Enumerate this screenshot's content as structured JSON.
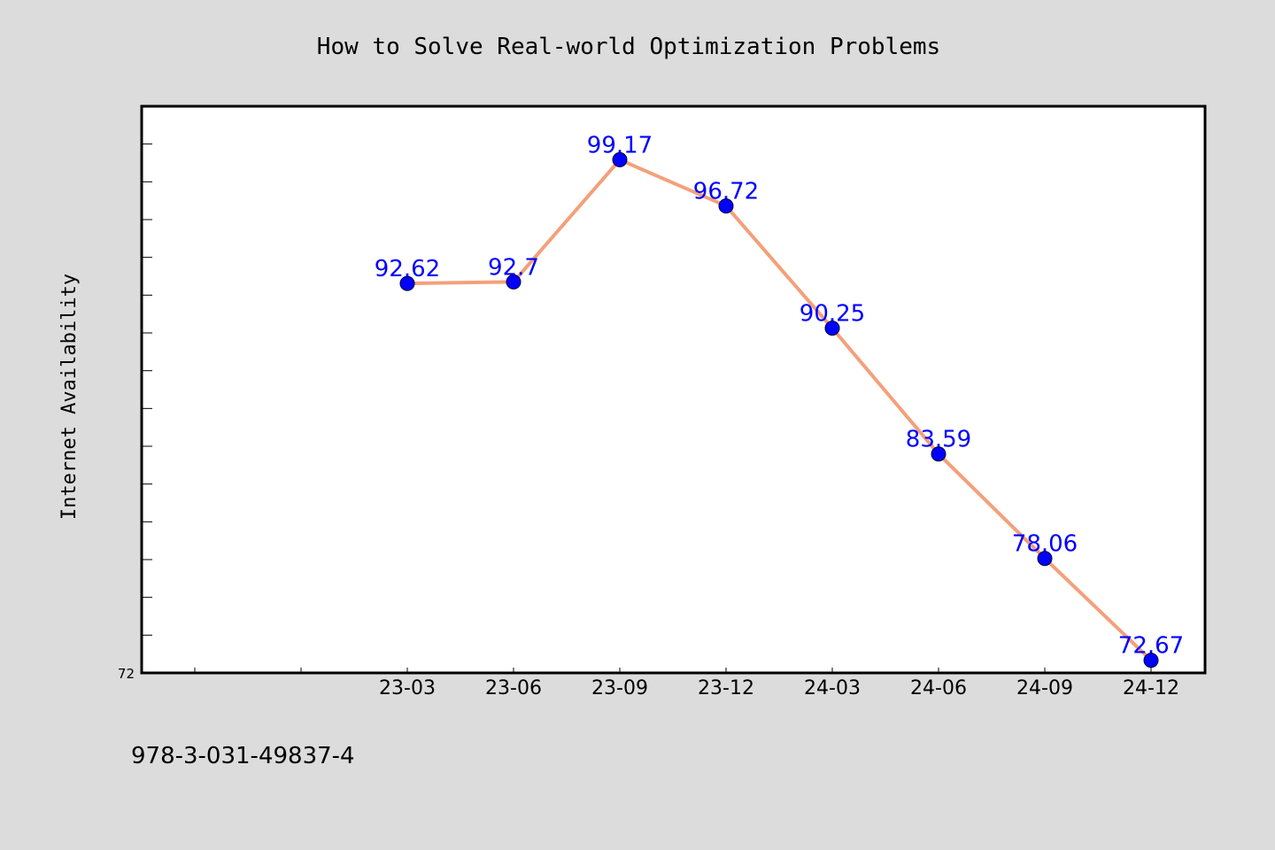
{
  "chart_data": {
    "type": "line",
    "title": "How to Solve Real-world Optimization Problems",
    "xlabel": "",
    "ylabel": "Internet Availability",
    "categories": [
      "23-03",
      "23-06",
      "23-09",
      "23-12",
      "24-03",
      "24-06",
      "24-09",
      "24-12"
    ],
    "values": [
      92.62,
      92.7,
      99.17,
      96.72,
      90.25,
      83.59,
      78.06,
      72.67
    ],
    "data_labels": [
      "92.62",
      "92.7",
      "99.17",
      "96.72",
      "90.25",
      "83.59",
      "78.06",
      "72.67"
    ],
    "ylim": [
      72,
      102
    ],
    "y_tick_labels": [
      "72"
    ],
    "line_color": "#f4a07a",
    "marker_color": "#0000ff",
    "label_color": "#0000ff",
    "grid": false,
    "legend": "none"
  },
  "footer": {
    "text": "978-3-031-49837-4"
  },
  "colors": {
    "background": "#dcdcdc",
    "plot_background": "#ffffff"
  }
}
